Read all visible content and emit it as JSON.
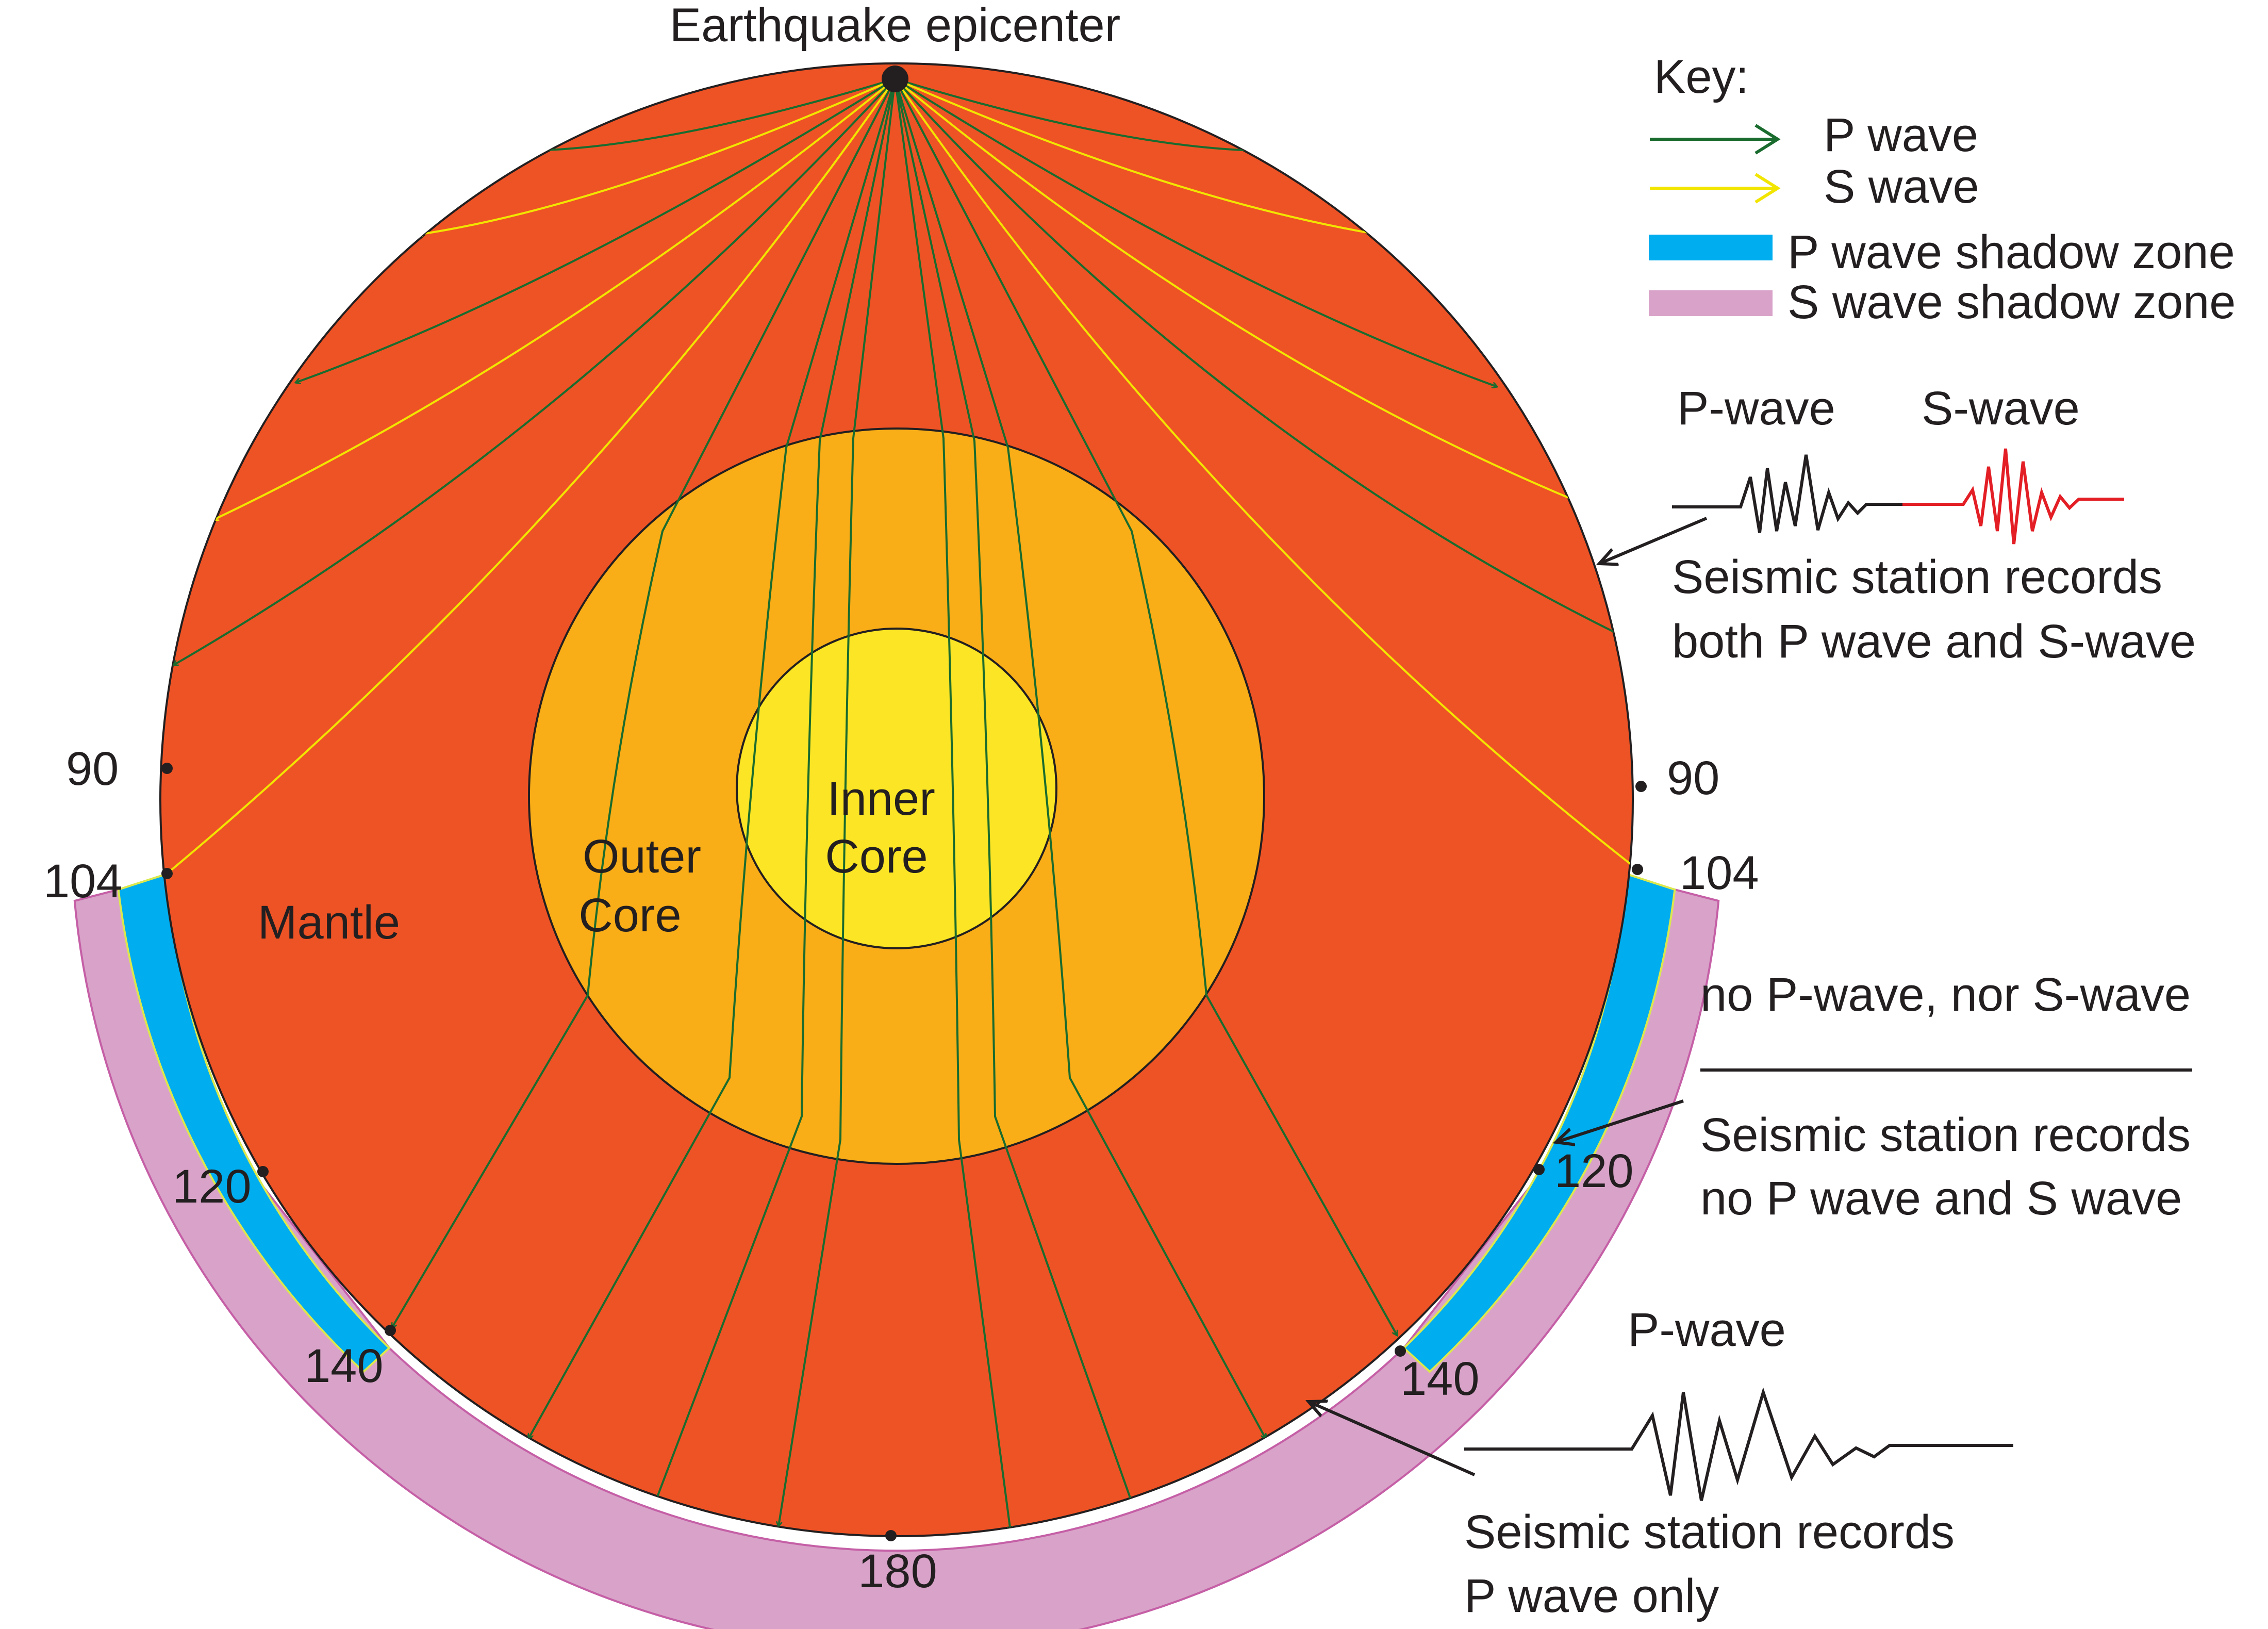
{
  "title": "Earthquake epicenter",
  "key": {
    "heading": "Key:",
    "items": [
      {
        "label": "P wave",
        "kind": "arrow",
        "color": "#1a6b2e"
      },
      {
        "label": "S wave",
        "kind": "arrow",
        "color": "#f2e500"
      },
      {
        "label": "P wave shadow zone",
        "kind": "swatch",
        "color": "#00adef"
      },
      {
        "label": "S wave shadow zone",
        "kind": "swatch",
        "color": "#d9a3c9"
      }
    ]
  },
  "layers": {
    "mantle": "Mantle",
    "outer_core_line1": "Outer",
    "outer_core_line2": "Core",
    "inner_core_line1": "Inner",
    "inner_core_line2": "Core"
  },
  "degree_marks": {
    "left_90": "90",
    "right_90": "90",
    "left_104": "104",
    "right_104": "104",
    "left_120": "120",
    "right_120": "120",
    "left_140": "140",
    "right_140": "140",
    "bottom_180": "180"
  },
  "stations": {
    "both": {
      "p_label": "P-wave",
      "s_label": "S-wave",
      "line1": "Seismic station records",
      "line2": "both  P wave and S-wave"
    },
    "none": {
      "heading": "no P-wave, nor S-wave",
      "line1": "Seismic station records",
      "line2": "no P wave and S wave"
    },
    "p_only": {
      "p_label": "P-wave",
      "line1": "Seismic station records",
      "line2": "P wave only"
    }
  },
  "colors": {
    "mantle": "#ee5325",
    "outer_core": "#f9ad17",
    "inner_core": "#fbe525",
    "p_wave": "#1a6b2e",
    "s_wave": "#f2e500",
    "p_shadow": "#00adef",
    "s_shadow": "#d9a3c9",
    "seismogram_s": "#e31e25"
  }
}
